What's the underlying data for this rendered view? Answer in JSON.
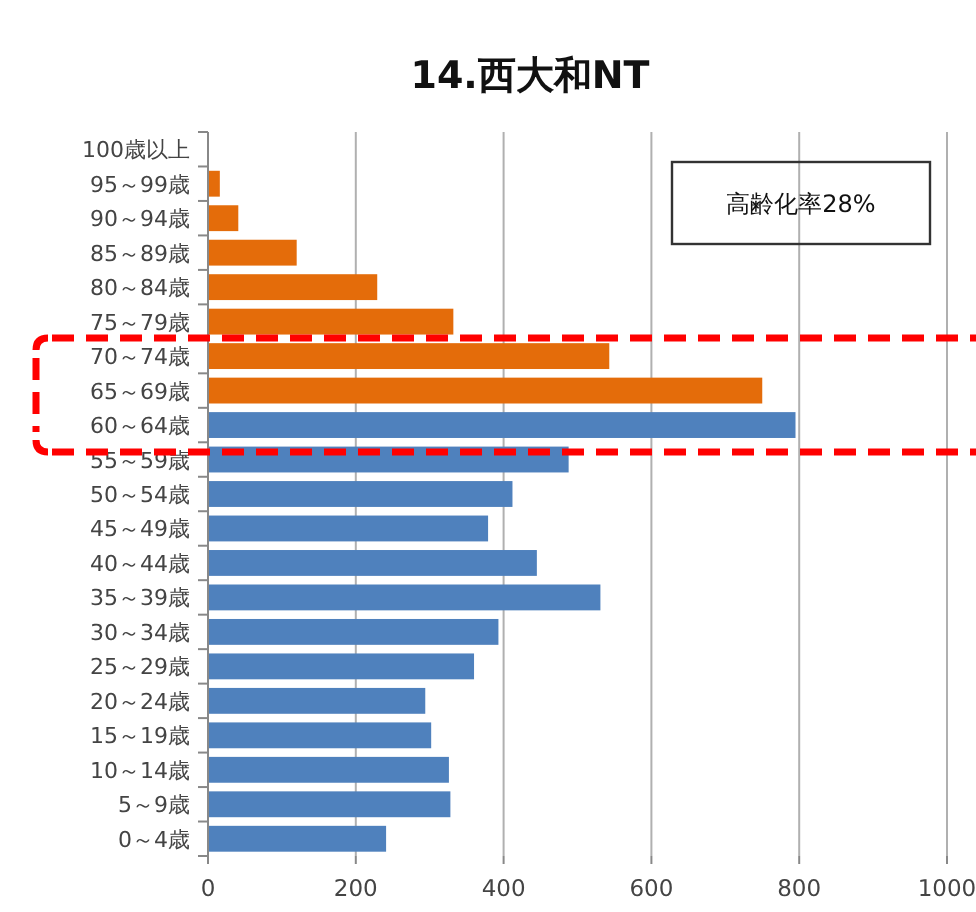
{
  "chart_data": {
    "type": "bar",
    "orientation": "horizontal",
    "title": "14.西大和NT",
    "categories": [
      "100歳以上",
      "95～99歳",
      "90～94歳",
      "85～89歳",
      "80～84歳",
      "75～79歳",
      "70～74歳",
      "65～69歳",
      "60～64歳",
      "55～59歳",
      "50～54歳",
      "45～49歳",
      "40～44歳",
      "35～39歳",
      "30～34歳",
      "25～29歳",
      "20～24歳",
      "15～19歳",
      "10～14歳",
      "5～9歳",
      "0～4歳"
    ],
    "values": [
      0,
      16,
      41,
      120,
      229,
      332,
      543,
      750,
      795,
      488,
      412,
      379,
      445,
      531,
      393,
      360,
      294,
      302,
      326,
      328,
      241
    ],
    "colors": [
      "#e46c0a",
      "#e46c0a",
      "#e46c0a",
      "#e46c0a",
      "#e46c0a",
      "#e46c0a",
      "#e46c0a",
      "#e46c0a",
      "#4f81bd",
      "#4f81bd",
      "#4f81bd",
      "#4f81bd",
      "#4f81bd",
      "#4f81bd",
      "#4f81bd",
      "#4f81bd",
      "#4f81bd",
      "#4f81bd",
      "#4f81bd",
      "#4f81bd",
      "#4f81bd"
    ],
    "xlim": [
      0,
      1000
    ],
    "xticks": [
      0,
      200,
      400,
      600,
      800,
      1000
    ],
    "grid": "x",
    "annotations": [
      "高齢化率28%"
    ]
  }
}
